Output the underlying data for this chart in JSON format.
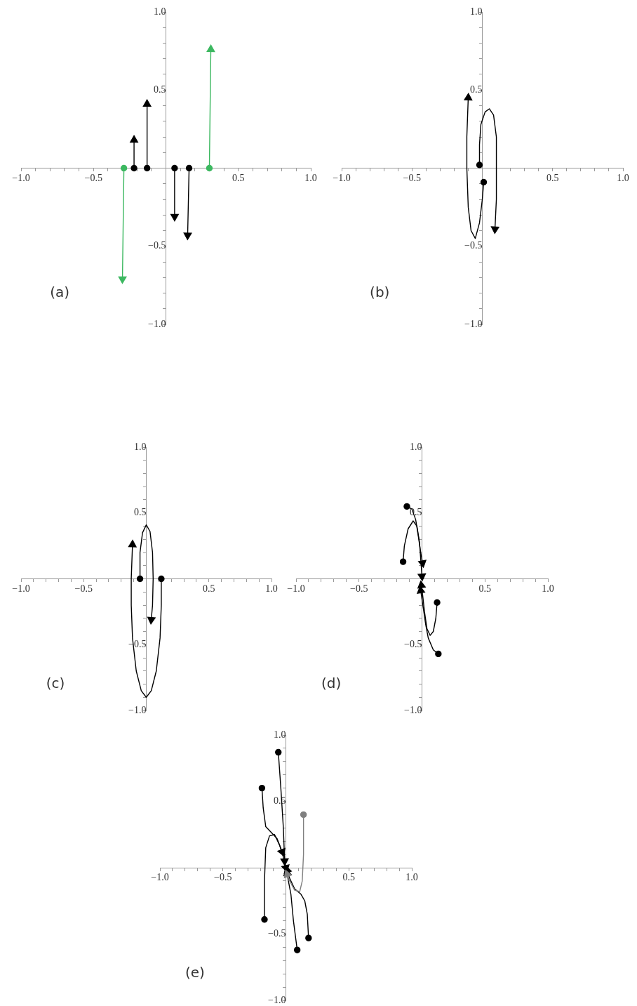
{
  "chart_data": [
    {
      "type": "line",
      "xlim": [
        -1,
        1
      ],
      "ylim": [
        -1,
        1
      ],
      "xticks": [
        {
          "value": -1,
          "label": "−1.0"
        },
        {
          "value": -0.9,
          "label": null
        },
        {
          "value": -0.8,
          "label": null
        },
        {
          "value": -0.7,
          "label": null
        },
        {
          "value": -0.6,
          "label": null
        },
        {
          "value": -0.5,
          "label": "−0.5"
        },
        {
          "value": -0.4,
          "label": null
        },
        {
          "value": -0.3,
          "label": null
        },
        {
          "value": -0.2,
          "label": null
        },
        {
          "value": -0.1,
          "label": null
        },
        {
          "value": 0.1,
          "label": null
        },
        {
          "value": 0.2,
          "label": null
        },
        {
          "value": 0.3,
          "label": null
        },
        {
          "value": 0.4,
          "label": null
        },
        {
          "value": 0.5,
          "label": "0.5"
        },
        {
          "value": 0.6,
          "label": null
        },
        {
          "value": 0.7,
          "label": null
        },
        {
          "value": 0.8,
          "label": null
        },
        {
          "value": 0.9,
          "label": null
        },
        {
          "value": 1,
          "label": "1.0"
        }
      ],
      "yticks": [
        {
          "value": -1,
          "label": "−1.0"
        },
        {
          "value": -0.9,
          "label": null
        },
        {
          "value": -0.8,
          "label": null
        },
        {
          "value": -0.7,
          "label": null
        },
        {
          "value": -0.6,
          "label": null
        },
        {
          "value": -0.5,
          "label": "−0.5"
        },
        {
          "value": -0.4,
          "label": null
        },
        {
          "value": -0.3,
          "label": null
        },
        {
          "value": -0.2,
          "label": null
        },
        {
          "value": -0.1,
          "label": null
        },
        {
          "value": 0.1,
          "label": null
        },
        {
          "value": 0.2,
          "label": null
        },
        {
          "value": 0.3,
          "label": null
        },
        {
          "value": 0.4,
          "label": null
        },
        {
          "value": 0.5,
          "label": "0.5"
        },
        {
          "value": 0.6,
          "label": null
        },
        {
          "value": 0.7,
          "label": null
        },
        {
          "value": 0.8,
          "label": null
        },
        {
          "value": 0.9,
          "label": null
        },
        {
          "value": 1,
          "label": "1.0"
        }
      ],
      "annotations": [
        "(a)"
      ],
      "marker": "circle",
      "series": [
        {
          "color": "#3cb860",
          "x": [
            -0.29,
            -0.3
          ],
          "values": [
            0,
            -0.71
          ]
        },
        {
          "color": "#000000",
          "x": [
            -0.22,
            -0.22
          ],
          "values": [
            0,
            0.18
          ]
        },
        {
          "color": "#000000",
          "x": [
            -0.13,
            -0.13
          ],
          "values": [
            0,
            0.41
          ]
        },
        {
          "color": "#000000",
          "x": [
            0.06,
            0.06
          ],
          "values": [
            0,
            -0.31
          ]
        },
        {
          "color": "#000000",
          "x": [
            0.16,
            0.15
          ],
          "values": [
            0,
            -0.43
          ]
        },
        {
          "color": "#3cb860",
          "x": [
            0.3,
            0.31
          ],
          "values": [
            0,
            0.76
          ]
        }
      ]
    },
    {
      "type": "line",
      "xlim": [
        -1,
        1
      ],
      "ylim": [
        -1,
        1
      ],
      "xticks": [
        {
          "value": -1,
          "label": "−1.0"
        },
        {
          "value": -0.9,
          "label": null
        },
        {
          "value": -0.8,
          "label": null
        },
        {
          "value": -0.7,
          "label": null
        },
        {
          "value": -0.6,
          "label": null
        },
        {
          "value": -0.5,
          "label": "−0.5"
        },
        {
          "value": -0.4,
          "label": null
        },
        {
          "value": -0.3,
          "label": null
        },
        {
          "value": -0.2,
          "label": null
        },
        {
          "value": -0.1,
          "label": null
        },
        {
          "value": 0.1,
          "label": null
        },
        {
          "value": 0.2,
          "label": null
        },
        {
          "value": 0.3,
          "label": null
        },
        {
          "value": 0.4,
          "label": null
        },
        {
          "value": 0.5,
          "label": "0.5"
        },
        {
          "value": 0.6,
          "label": null
        },
        {
          "value": 0.7,
          "label": null
        },
        {
          "value": 0.8,
          "label": null
        },
        {
          "value": 0.9,
          "label": null
        },
        {
          "value": 1,
          "label": "1.0"
        }
      ],
      "yticks": [
        {
          "value": -1,
          "label": "−1.0"
        },
        {
          "value": -0.9,
          "label": null
        },
        {
          "value": -0.8,
          "label": null
        },
        {
          "value": -0.7,
          "label": null
        },
        {
          "value": -0.6,
          "label": null
        },
        {
          "value": -0.5,
          "label": "−0.5"
        },
        {
          "value": -0.4,
          "label": null
        },
        {
          "value": -0.3,
          "label": null
        },
        {
          "value": -0.2,
          "label": null
        },
        {
          "value": -0.1,
          "label": null
        },
        {
          "value": 0.1,
          "label": null
        },
        {
          "value": 0.2,
          "label": null
        },
        {
          "value": 0.3,
          "label": null
        },
        {
          "value": 0.4,
          "label": null
        },
        {
          "value": 0.5,
          "label": "0.5"
        },
        {
          "value": 0.6,
          "label": null
        },
        {
          "value": 0.7,
          "label": null
        },
        {
          "value": 0.8,
          "label": null
        },
        {
          "value": 0.9,
          "label": null
        },
        {
          "value": 1,
          "label": "1.0"
        }
      ],
      "annotations": [
        "(b)"
      ],
      "series": [
        {
          "color": "#000000",
          "x": [
            -0.02,
            -0.02,
            -0.01,
            0.02,
            0.05,
            0.08,
            0.1,
            0.1,
            0.09
          ],
          "values": [
            0.02,
            0.15,
            0.28,
            0.36,
            0.38,
            0.34,
            0.2,
            -0.2,
            -0.39
          ]
        },
        {
          "color": "#000000",
          "x": [
            0.01,
            0,
            -0.02,
            -0.05,
            -0.08,
            -0.1,
            -0.11,
            -0.11,
            -0.1
          ],
          "values": [
            -0.09,
            -0.2,
            -0.35,
            -0.45,
            -0.4,
            -0.25,
            0,
            0.2,
            0.45
          ]
        }
      ]
    },
    {
      "type": "line",
      "xlim": [
        -1,
        1
      ],
      "ylim": [
        -1,
        1
      ],
      "xticks": [
        {
          "value": -1,
          "label": "−1.0"
        },
        {
          "value": -0.9,
          "label": null
        },
        {
          "value": -0.8,
          "label": null
        },
        {
          "value": -0.7,
          "label": null
        },
        {
          "value": -0.6,
          "label": null
        },
        {
          "value": -0.5,
          "label": "−0.5"
        },
        {
          "value": -0.4,
          "label": null
        },
        {
          "value": -0.3,
          "label": null
        },
        {
          "value": -0.2,
          "label": null
        },
        {
          "value": -0.1,
          "label": null
        },
        {
          "value": 0.1,
          "label": null
        },
        {
          "value": 0.2,
          "label": null
        },
        {
          "value": 0.3,
          "label": null
        },
        {
          "value": 0.4,
          "label": null
        },
        {
          "value": 0.5,
          "label": "0.5"
        },
        {
          "value": 0.6,
          "label": null
        },
        {
          "value": 0.7,
          "label": null
        },
        {
          "value": 0.8,
          "label": null
        },
        {
          "value": 0.9,
          "label": null
        },
        {
          "value": 1,
          "label": "1.0"
        }
      ],
      "yticks": [
        {
          "value": -1,
          "label": "−1.0"
        },
        {
          "value": -0.9,
          "label": null
        },
        {
          "value": -0.8,
          "label": null
        },
        {
          "value": -0.7,
          "label": null
        },
        {
          "value": -0.6,
          "label": null
        },
        {
          "value": -0.5,
          "label": "−0.5"
        },
        {
          "value": -0.4,
          "label": null
        },
        {
          "value": -0.3,
          "label": null
        },
        {
          "value": -0.2,
          "label": null
        },
        {
          "value": -0.1,
          "label": null
        },
        {
          "value": 0.1,
          "label": null
        },
        {
          "value": 0.2,
          "label": null
        },
        {
          "value": 0.3,
          "label": null
        },
        {
          "value": 0.4,
          "label": null
        },
        {
          "value": 0.5,
          "label": "0.5"
        },
        {
          "value": 0.6,
          "label": null
        },
        {
          "value": 0.7,
          "label": null
        },
        {
          "value": 0.8,
          "label": null
        },
        {
          "value": 0.9,
          "label": null
        },
        {
          "value": 1,
          "label": "1.0"
        }
      ],
      "annotations": [
        "(c)"
      ],
      "series": [
        {
          "color": "#000000",
          "x": [
            -0.05,
            -0.05,
            -0.03,
            0,
            0.03,
            0.05,
            0.055,
            0.05,
            0.04
          ],
          "values": [
            0,
            0.2,
            0.35,
            0.41,
            0.36,
            0.2,
            0,
            -0.2,
            -0.31
          ]
        },
        {
          "color": "#000000",
          "x": [
            0.12,
            0.12,
            0.11,
            0.08,
            0.04,
            0,
            -0.04,
            -0.08,
            -0.11,
            -0.12,
            -0.12,
            -0.11
          ],
          "values": [
            0,
            -0.2,
            -0.45,
            -0.7,
            -0.85,
            -0.9,
            -0.85,
            -0.7,
            -0.45,
            -0.2,
            0,
            0.26
          ]
        }
      ]
    },
    {
      "type": "line",
      "xlim": [
        -1,
        1
      ],
      "ylim": [
        -1,
        1
      ],
      "xticks": [
        {
          "value": -1,
          "label": "−1.0"
        },
        {
          "value": -0.9,
          "label": null
        },
        {
          "value": -0.8,
          "label": null
        },
        {
          "value": -0.7,
          "label": null
        },
        {
          "value": -0.6,
          "label": null
        },
        {
          "value": -0.5,
          "label": "−0.5"
        },
        {
          "value": -0.4,
          "label": null
        },
        {
          "value": -0.3,
          "label": null
        },
        {
          "value": -0.2,
          "label": null
        },
        {
          "value": -0.1,
          "label": null
        },
        {
          "value": 0.1,
          "label": null
        },
        {
          "value": 0.2,
          "label": null
        },
        {
          "value": 0.3,
          "label": null
        },
        {
          "value": 0.4,
          "label": null
        },
        {
          "value": 0.5,
          "label": "0.5"
        },
        {
          "value": 0.6,
          "label": null
        },
        {
          "value": 0.7,
          "label": null
        },
        {
          "value": 0.8,
          "label": null
        },
        {
          "value": 0.9,
          "label": null
        },
        {
          "value": 1,
          "label": "1.0"
        }
      ],
      "yticks": [
        {
          "value": -1,
          "label": "−1.0"
        },
        {
          "value": -0.9,
          "label": null
        },
        {
          "value": -0.8,
          "label": null
        },
        {
          "value": -0.7,
          "label": null
        },
        {
          "value": -0.6,
          "label": null
        },
        {
          "value": -0.5,
          "label": "−0.5"
        },
        {
          "value": -0.4,
          "label": null
        },
        {
          "value": -0.3,
          "label": null
        },
        {
          "value": -0.2,
          "label": null
        },
        {
          "value": -0.1,
          "label": null
        },
        {
          "value": 0.1,
          "label": null
        },
        {
          "value": 0.2,
          "label": null
        },
        {
          "value": 0.3,
          "label": null
        },
        {
          "value": 0.4,
          "label": null
        },
        {
          "value": 0.5,
          "label": "0.5"
        },
        {
          "value": 0.6,
          "label": null
        },
        {
          "value": 0.7,
          "label": null
        },
        {
          "value": 0.8,
          "label": null
        },
        {
          "value": 0.9,
          "label": null
        },
        {
          "value": 1,
          "label": "1.0"
        }
      ],
      "annotations": [
        "(d)"
      ],
      "series": [
        {
          "color": "#000000",
          "x": [
            -0.15,
            -0.14,
            -0.11,
            -0.07,
            -0.04,
            -0.02,
            -0.01,
            0
          ],
          "values": [
            0.13,
            0.25,
            0.38,
            0.44,
            0.4,
            0.28,
            0.15,
            0.02
          ]
        },
        {
          "color": "#000000",
          "x": [
            -0.12,
            -0.08,
            -0.05,
            -0.03,
            -0.01,
            0.005
          ],
          "values": [
            0.55,
            0.53,
            0.45,
            0.33,
            0.2,
            0.12
          ]
        },
        {
          "color": "#000000",
          "x": [
            0.12,
            0.11,
            0.09,
            0.065,
            0.04,
            0.02,
            0.005,
            -0.005
          ],
          "values": [
            -0.18,
            -0.3,
            -0.4,
            -0.43,
            -0.38,
            -0.25,
            -0.12,
            -0.05
          ]
        },
        {
          "color": "#000000",
          "x": [
            0.13,
            0.09,
            0.05,
            0.03,
            0.01,
            -0.01
          ],
          "values": [
            -0.57,
            -0.54,
            -0.45,
            -0.35,
            -0.22,
            -0.09
          ]
        }
      ]
    },
    {
      "type": "line",
      "xlim": [
        -1,
        1
      ],
      "ylim": [
        -1,
        1
      ],
      "xticks": [
        {
          "value": -1,
          "label": "−1.0"
        },
        {
          "value": -0.9,
          "label": null
        },
        {
          "value": -0.8,
          "label": null
        },
        {
          "value": -0.7,
          "label": null
        },
        {
          "value": -0.6,
          "label": null
        },
        {
          "value": -0.5,
          "label": "−0.5"
        },
        {
          "value": -0.4,
          "label": null
        },
        {
          "value": -0.3,
          "label": null
        },
        {
          "value": -0.2,
          "label": null
        },
        {
          "value": -0.1,
          "label": null
        },
        {
          "value": 0.1,
          "label": null
        },
        {
          "value": 0.2,
          "label": null
        },
        {
          "value": 0.3,
          "label": null
        },
        {
          "value": 0.4,
          "label": null
        },
        {
          "value": 0.5,
          "label": "0.5"
        },
        {
          "value": 0.6,
          "label": null
        },
        {
          "value": 0.7,
          "label": null
        },
        {
          "value": 0.8,
          "label": null
        },
        {
          "value": 0.9,
          "label": null
        },
        {
          "value": 1,
          "label": "1.0"
        }
      ],
      "yticks": [
        {
          "value": -1,
          "label": "−1.0"
        },
        {
          "value": -0.9,
          "label": null
        },
        {
          "value": -0.8,
          "label": null
        },
        {
          "value": -0.7,
          "label": null
        },
        {
          "value": -0.6,
          "label": null
        },
        {
          "value": -0.5,
          "label": "−0.5"
        },
        {
          "value": -0.4,
          "label": null
        },
        {
          "value": -0.3,
          "label": null
        },
        {
          "value": -0.2,
          "label": null
        },
        {
          "value": -0.1,
          "label": null
        },
        {
          "value": 0.1,
          "label": null
        },
        {
          "value": 0.2,
          "label": null
        },
        {
          "value": 0.3,
          "label": null
        },
        {
          "value": 0.4,
          "label": null
        },
        {
          "value": 0.5,
          "label": "0.5"
        },
        {
          "value": 0.6,
          "label": null
        },
        {
          "value": 0.7,
          "label": null
        },
        {
          "value": 0.8,
          "label": null
        },
        {
          "value": 0.9,
          "label": null
        },
        {
          "value": 1,
          "label": "1.0"
        }
      ],
      "annotations": [
        "(e)"
      ],
      "series": [
        {
          "color": "#000000",
          "x": [
            -0.19,
            -0.18,
            -0.16,
            -0.12,
            -0.07,
            -0.03
          ],
          "values": [
            0.6,
            0.45,
            0.31,
            0.27,
            0.22,
            0.12
          ]
        },
        {
          "color": "#000000",
          "x": [
            -0.06,
            -0.04,
            -0.02,
            -0.01
          ],
          "values": [
            0.87,
            0.6,
            0.3,
            0.05
          ]
        },
        {
          "color": "#808080",
          "x": [
            0.14,
            0.14,
            0.13,
            0.11,
            0.07,
            0.03,
            0.01
          ],
          "values": [
            0.4,
            0.1,
            -0.1,
            -0.18,
            -0.17,
            -0.1,
            -0.05
          ]
        },
        {
          "color": "#000000",
          "x": [
            -0.17,
            -0.17,
            -0.16,
            -0.13,
            -0.09,
            -0.05,
            -0.02,
            0
          ],
          "values": [
            -0.39,
            -0.1,
            0.15,
            0.24,
            0.25,
            0.17,
            0.08,
            0
          ]
        },
        {
          "color": "#000000",
          "x": [
            0.09,
            0.06,
            0.04,
            0.02,
            0.01
          ],
          "values": [
            -0.62,
            -0.4,
            -0.2,
            -0.1,
            -0.04
          ]
        },
        {
          "color": "#000000",
          "x": [
            0.18,
            0.17,
            0.15,
            0.12,
            0.07,
            0.03,
            0.01
          ],
          "values": [
            -0.53,
            -0.35,
            -0.25,
            -0.2,
            -0.16,
            -0.08,
            -0.02
          ]
        }
      ]
    }
  ]
}
